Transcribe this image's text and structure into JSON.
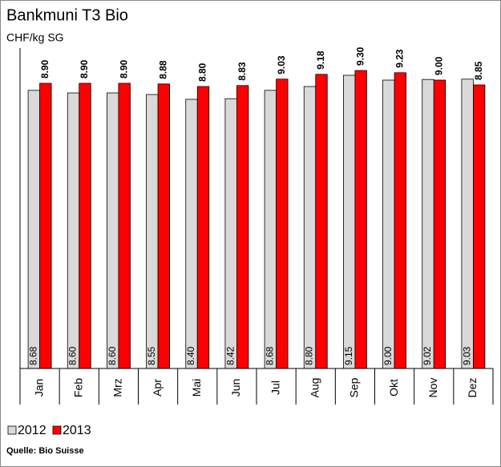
{
  "chart_data": {
    "type": "bar",
    "title": "Bankmuni T3 Bio",
    "subtitle": "CHF/kg SG",
    "source": "Quelle: Bio Suisse",
    "categories": [
      "Jan",
      "Feb",
      "Mrz",
      "Apr",
      "Mai",
      "Jun",
      "Jul",
      "Aug",
      "Sep",
      "Okt",
      "Nov",
      "Dez"
    ],
    "series": [
      {
        "name": "2012",
        "color": "#d9d9d9",
        "values": [
          8.68,
          8.6,
          8.6,
          8.55,
          8.4,
          8.42,
          8.68,
          8.8,
          9.15,
          9.0,
          9.02,
          9.03
        ],
        "value_labels": [
          "8.68",
          "8.60",
          "8.60",
          "8.55",
          "8.40",
          "8.42",
          "8.68",
          "8.80",
          "9.15",
          "9.00",
          "9.02",
          "9.03"
        ]
      },
      {
        "name": "2013",
        "color": "#ff0000",
        "values": [
          8.9,
          8.9,
          8.9,
          8.88,
          8.8,
          8.83,
          9.03,
          9.18,
          9.3,
          9.23,
          9.0,
          8.85
        ],
        "value_labels": [
          "8.90",
          "8.90",
          "8.90",
          "8.88",
          "8.80",
          "8.83",
          "9.03",
          "9.18",
          "9.30",
          "9.23",
          "9.00",
          "8.85"
        ]
      }
    ],
    "ylim": [
      0,
      10
    ]
  }
}
